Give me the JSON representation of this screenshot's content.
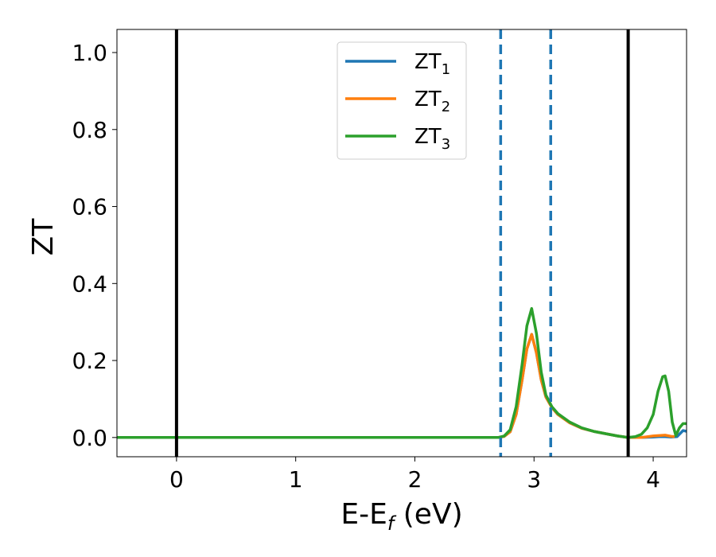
{
  "chart_data": {
    "type": "line",
    "xlabel": "E-E",
    "xlabel_sub": "f",
    "xlabel_unit": " (eV)",
    "ylabel": "ZT",
    "xlim": [
      -0.5,
      4.28
    ],
    "ylim": [
      -0.05,
      1.06
    ],
    "xticks": [
      0,
      1,
      2,
      3,
      4
    ],
    "xtick_labels": [
      "0",
      "1",
      "2",
      "3",
      "4"
    ],
    "yticks": [
      0.0,
      0.2,
      0.4,
      0.6,
      0.8,
      1.0
    ],
    "ytick_labels": [
      "0.0",
      "0.2",
      "0.4",
      "0.6",
      "0.8",
      "1.0"
    ],
    "grid": false,
    "legend_position": "upper-center",
    "vertical_lines": [
      {
        "x": 0.0,
        "style": "solid",
        "color": "#000000"
      },
      {
        "x": 3.79,
        "style": "solid",
        "color": "#000000"
      },
      {
        "x": 2.72,
        "style": "dashed",
        "color": "#1f77b4"
      },
      {
        "x": 3.14,
        "style": "dashed",
        "color": "#1f77b4"
      }
    ],
    "series": [
      {
        "name": "ZT",
        "subscript": "1",
        "color": "#1f77b4",
        "x": [
          -0.5,
          2.7,
          2.75,
          2.8,
          2.85,
          2.9,
          2.94,
          2.98,
          3.02,
          3.06,
          3.1,
          3.15,
          3.2,
          3.3,
          3.4,
          3.5,
          3.6,
          3.7,
          3.79,
          3.9,
          4.0,
          4.05,
          4.1,
          4.15,
          4.2,
          4.25,
          4.28
        ],
        "y": [
          0.0,
          0.0,
          0.003,
          0.015,
          0.06,
          0.15,
          0.23,
          0.268,
          0.22,
          0.15,
          0.105,
          0.078,
          0.06,
          0.038,
          0.024,
          0.016,
          0.01,
          0.004,
          0.0,
          0.0,
          0.001,
          0.002,
          0.002,
          0.001,
          0.002,
          0.018,
          0.016
        ]
      },
      {
        "name": "ZT",
        "subscript": "2",
        "color": "#ff7f0e",
        "x": [
          -0.5,
          2.7,
          2.75,
          2.8,
          2.85,
          2.9,
          2.94,
          2.98,
          3.02,
          3.06,
          3.1,
          3.15,
          3.2,
          3.3,
          3.4,
          3.5,
          3.6,
          3.7,
          3.79,
          3.9,
          4.0,
          4.05,
          4.1,
          4.15,
          4.18
        ],
        "y": [
          0.0,
          0.0,
          0.003,
          0.015,
          0.06,
          0.15,
          0.23,
          0.268,
          0.22,
          0.15,
          0.105,
          0.078,
          0.06,
          0.038,
          0.024,
          0.016,
          0.01,
          0.004,
          0.0,
          0.0,
          0.004,
          0.005,
          0.006,
          0.003,
          0.002
        ]
      },
      {
        "name": "ZT",
        "subscript": "3",
        "color": "#2ca02c",
        "x": [
          -0.5,
          2.7,
          2.75,
          2.8,
          2.85,
          2.9,
          2.94,
          2.98,
          3.02,
          3.06,
          3.1,
          3.15,
          3.2,
          3.3,
          3.4,
          3.5,
          3.6,
          3.7,
          3.79,
          3.85,
          3.9,
          3.95,
          4.0,
          4.04,
          4.08,
          4.1,
          4.13,
          4.16,
          4.19,
          4.22,
          4.25,
          4.28
        ],
        "y": [
          0.0,
          0.0,
          0.004,
          0.02,
          0.08,
          0.19,
          0.29,
          0.335,
          0.27,
          0.17,
          0.11,
          0.08,
          0.062,
          0.04,
          0.025,
          0.016,
          0.01,
          0.004,
          0.0,
          0.002,
          0.008,
          0.025,
          0.06,
          0.12,
          0.158,
          0.16,
          0.12,
          0.04,
          0.005,
          0.025,
          0.036,
          0.036
        ]
      }
    ]
  }
}
